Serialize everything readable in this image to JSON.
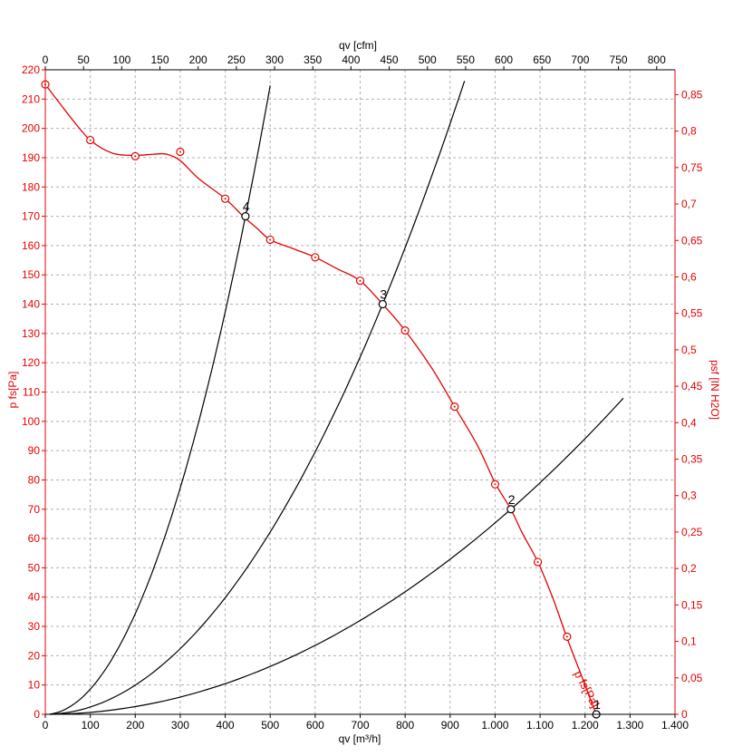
{
  "chart_data": {
    "type": "line",
    "top_axis": {
      "label": "qv [cfm]",
      "ticks": [
        "0",
        "50",
        "100",
        "150",
        "200",
        "250",
        "300",
        "350",
        "400",
        "450",
        "500",
        "550",
        "600",
        "650",
        "700",
        "750",
        "800"
      ],
      "range": [
        0,
        800
      ]
    },
    "bottom_axis": {
      "label": "qv [m³/h]",
      "ticks": [
        "0",
        "100",
        "200",
        "300",
        "400",
        "500",
        "600",
        "700",
        "800",
        "900",
        "1.000",
        "1.100",
        "1.200",
        "1.300",
        "1.400"
      ],
      "range": [
        0,
        1400
      ]
    },
    "left_axis": {
      "label": "p  fs[Pa]",
      "ticks": [
        "0",
        "10",
        "20",
        "30",
        "40",
        "50",
        "60",
        "70",
        "80",
        "90",
        "100",
        "110",
        "120",
        "130",
        "140",
        "150",
        "160",
        "170",
        "180",
        "190",
        "200",
        "210",
        "220"
      ],
      "range": [
        0,
        220
      ]
    },
    "right_axis": {
      "label": "psf [IN H2O]",
      "ticks": [
        "0",
        "0,05",
        "0,1",
        "0,15",
        "0,2",
        "0,25",
        "0,3",
        "0,35",
        "0,4",
        "0,45",
        "0,5",
        "0,55",
        "0,6",
        "0,65",
        "0,7",
        "0,75",
        "0,8",
        "0,85"
      ],
      "range": [
        0,
        0.8837
      ]
    },
    "grid": true,
    "fan_curve": {
      "label": "p  fs[Pa]",
      "color": "#e60000",
      "points": [
        {
          "x": 0,
          "y": 215
        },
        {
          "x": 30,
          "y": 209
        },
        {
          "x": 60,
          "y": 203
        },
        {
          "x": 100,
          "y": 196
        },
        {
          "x": 150,
          "y": 191.5
        },
        {
          "x": 200,
          "y": 190.8
        },
        {
          "x": 240,
          "y": 191.2
        },
        {
          "x": 270,
          "y": 191.2
        },
        {
          "x": 300,
          "y": 189
        },
        {
          "x": 340,
          "y": 183
        },
        {
          "x": 400,
          "y": 176
        },
        {
          "x": 440,
          "y": 170
        },
        {
          "x": 470,
          "y": 166
        },
        {
          "x": 500,
          "y": 162
        },
        {
          "x": 550,
          "y": 159
        },
        {
          "x": 600,
          "y": 156
        },
        {
          "x": 650,
          "y": 152
        },
        {
          "x": 700,
          "y": 148
        },
        {
          "x": 750,
          "y": 140
        },
        {
          "x": 800,
          "y": 131
        },
        {
          "x": 860,
          "y": 118
        },
        {
          "x": 910,
          "y": 105
        },
        {
          "x": 960,
          "y": 92
        },
        {
          "x": 1000,
          "y": 79
        },
        {
          "x": 1035,
          "y": 70
        },
        {
          "x": 1060,
          "y": 62
        },
        {
          "x": 1095,
          "y": 52
        },
        {
          "x": 1130,
          "y": 39
        },
        {
          "x": 1160,
          "y": 26
        },
        {
          "x": 1190,
          "y": 14
        },
        {
          "x": 1212,
          "y": 5
        },
        {
          "x": 1225,
          "y": 0
        }
      ],
      "markers": [
        {
          "x": 0,
          "y": 215
        },
        {
          "x": 100,
          "y": 196
        },
        {
          "x": 200,
          "y": 190.5
        },
        {
          "x": 300,
          "y": 192
        },
        {
          "x": 400,
          "y": 176
        },
        {
          "x": 500,
          "y": 162
        },
        {
          "x": 600,
          "y": 156
        },
        {
          "x": 700,
          "y": 148
        },
        {
          "x": 800,
          "y": 131
        },
        {
          "x": 910,
          "y": 105
        },
        {
          "x": 1000,
          "y": 78.5
        },
        {
          "x": 1095,
          "y": 52
        },
        {
          "x": 1160,
          "y": 26.5
        }
      ]
    },
    "system_curves": [
      {
        "label": "4",
        "point": {
          "x": 445,
          "y": 170
        },
        "x_end": 500
      },
      {
        "label": "3",
        "point": {
          "x": 750,
          "y": 140
        },
        "x_end": 932
      },
      {
        "label": "2",
        "point": {
          "x": 1035,
          "y": 70
        },
        "x_end": 1285
      }
    ],
    "operating_points": [
      {
        "label": "1",
        "x": 1225,
        "y": 0
      },
      {
        "label": "2",
        "x": 1035,
        "y": 70
      },
      {
        "label": "3",
        "x": 750,
        "y": 140
      },
      {
        "label": "4",
        "x": 445,
        "y": 170
      }
    ],
    "colors": {
      "axis_red": "#e60000",
      "axis_black": "#000000",
      "grid": "#b0b0b0"
    }
  }
}
